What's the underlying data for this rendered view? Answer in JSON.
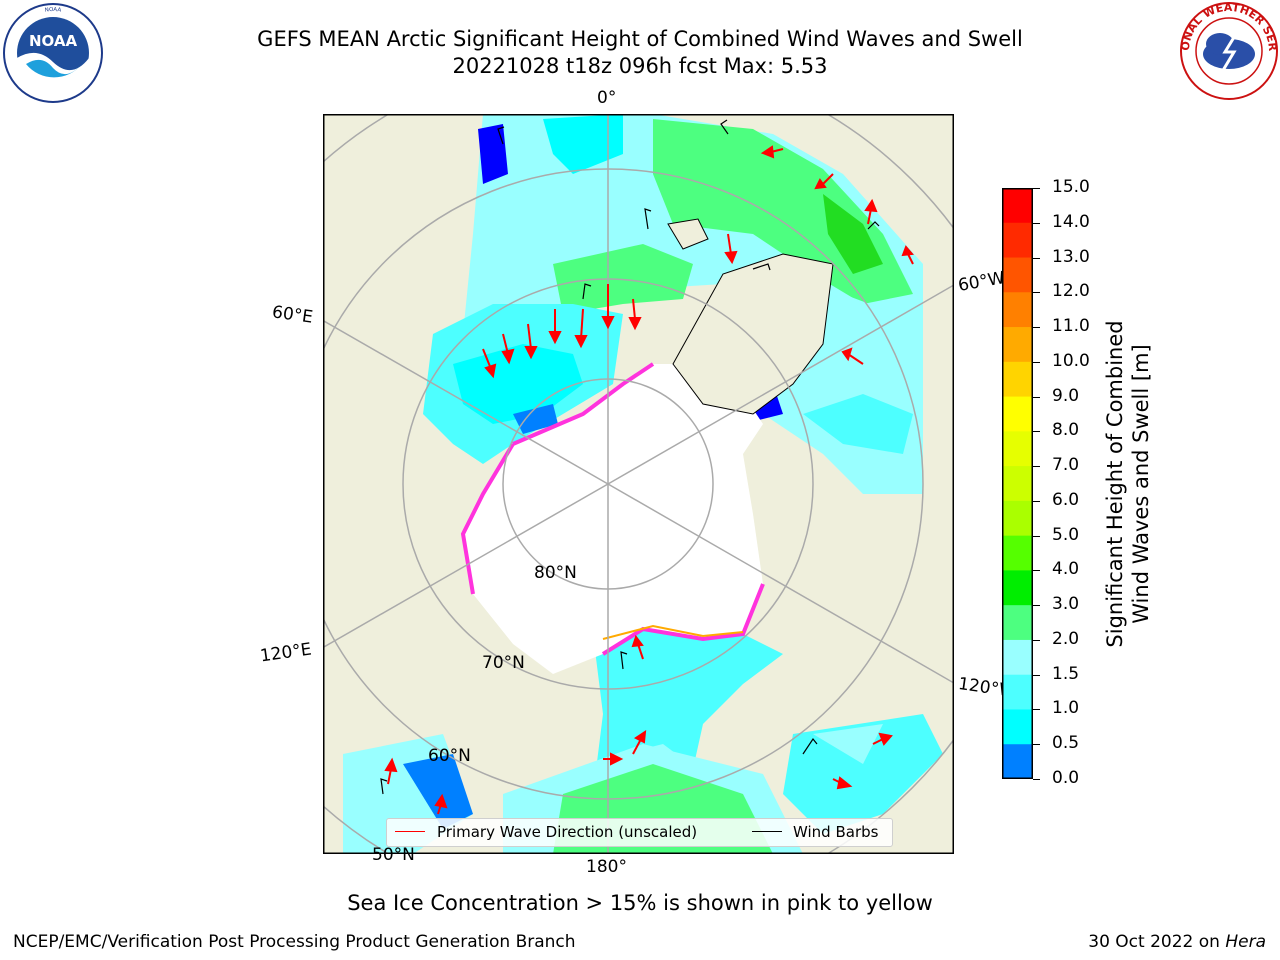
{
  "header": {
    "title_line1": "GEFS MEAN Arctic Significant Height of Combined Wind Waves and Swell",
    "title_line2": "20221028 t18z 096h fcst   Max: 5.53"
  },
  "logos": {
    "left": "NOAA",
    "right": "NATIONAL WEATHER SERVICE"
  },
  "map": {
    "projection": "north polar stereographic",
    "grid_labels": {
      "lon_0": "0°",
      "lon_60e": "60°E",
      "lon_120e": "120°E",
      "lon_180": "180°",
      "lon_60w": "60°W",
      "lon_120w": "120°W",
      "lat_80": "80°N",
      "lat_70": "70°N",
      "lat_60": "60°N",
      "lat_50": "50°N"
    },
    "colors": {
      "land": "#efefdc",
      "ice": "#ffffff",
      "ocean_low": "#00ffff",
      "ocean_mid": "#99ffff",
      "ocean_high": "#4dff80",
      "deep_green": "#22dd22",
      "calm_blue": "#0000ff",
      "ice_edge": "#ff33dd"
    }
  },
  "colorbar": {
    "title_line1": "Significant Height of Combined",
    "title_line2": "Wind Waves and Swell [m]",
    "ticks": [
      "15.0",
      "14.0",
      "13.0",
      "12.0",
      "11.0",
      "10.0",
      "9.0",
      "8.0",
      "7.0",
      "6.0",
      "5.0",
      "4.0",
      "3.0",
      "2.0",
      "1.5",
      "1.0",
      "0.5",
      "0.0"
    ],
    "colors": [
      "#ff0000",
      "#ff2a00",
      "#ff5500",
      "#ff8000",
      "#ffaa00",
      "#ffd400",
      "#ffff00",
      "#e6ff00",
      "#ccff00",
      "#aaff00",
      "#55ff00",
      "#00ee00",
      "#4dff80",
      "#99ffff",
      "#4dffff",
      "#00ffff",
      "#0080ff",
      "#0000ff"
    ]
  },
  "legend": {
    "primary_wave": "Primary Wave Direction (unscaled)",
    "wind_barbs": "Wind Barbs",
    "primary_color": "#ff0000",
    "barb_color": "#000000"
  },
  "caption": "Sea Ice Concentration > 15% is shown in pink to yellow",
  "footer": {
    "left": "NCEP/EMC/Verification Post Processing Product Generation Branch",
    "right_date": "30 Oct 2022 on",
    "right_host": "Hera"
  }
}
